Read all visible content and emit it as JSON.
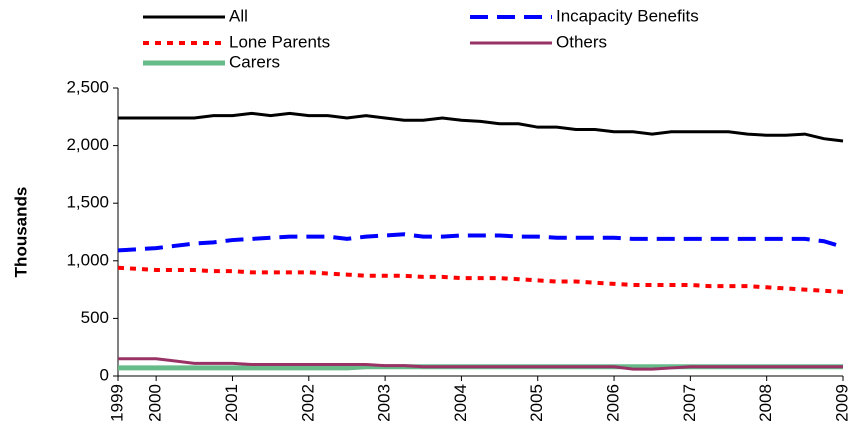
{
  "chart_data": {
    "type": "line",
    "y_label": "Thousands",
    "categories": [
      "1999",
      null,
      "2000",
      null,
      null,
      null,
      "2001",
      null,
      null,
      null,
      "2002",
      null,
      null,
      null,
      "2003",
      null,
      null,
      null,
      "2004",
      null,
      null,
      null,
      "2005",
      null,
      null,
      null,
      "2006",
      null,
      null,
      null,
      "2007",
      null,
      null,
      null,
      "2008",
      null,
      null,
      null,
      "2009"
    ],
    "series": [
      {
        "name": "All",
        "color": "#000000",
        "style": "solid",
        "values": [
          2240,
          2240,
          2240,
          2240,
          2240,
          2260,
          2260,
          2280,
          2260,
          2280,
          2260,
          2260,
          2240,
          2260,
          2240,
          2220,
          2220,
          2240,
          2220,
          2210,
          2190,
          2190,
          2160,
          2160,
          2140,
          2140,
          2120,
          2120,
          2100,
          2120,
          2120,
          2120,
          2120,
          2100,
          2090,
          2090,
          2100,
          2060,
          2040
        ]
      },
      {
        "name": "Incapacity Benefits",
        "color": "#0000ff",
        "style": "dashed",
        "values": [
          1090,
          1100,
          1110,
          1130,
          1150,
          1160,
          1180,
          1190,
          1200,
          1210,
          1210,
          1210,
          1190,
          1210,
          1220,
          1230,
          1210,
          1210,
          1220,
          1220,
          1220,
          1210,
          1210,
          1200,
          1200,
          1200,
          1200,
          1190,
          1190,
          1190,
          1190,
          1190,
          1190,
          1190,
          1190,
          1190,
          1190,
          1170,
          1120
        ]
      },
      {
        "name": "Lone Parents",
        "color": "#ff0000",
        "style": "dotted",
        "values": [
          940,
          930,
          920,
          920,
          920,
          910,
          910,
          900,
          900,
          900,
          900,
          890,
          880,
          870,
          870,
          870,
          860,
          860,
          850,
          850,
          850,
          840,
          830,
          820,
          820,
          810,
          800,
          790,
          790,
          790,
          790,
          780,
          780,
          780,
          770,
          760,
          750,
          740,
          730
        ]
      },
      {
        "name": "Others",
        "color": "#993366",
        "style": "solid",
        "values": [
          150,
          150,
          150,
          130,
          110,
          110,
          110,
          100,
          100,
          100,
          100,
          100,
          100,
          100,
          90,
          90,
          80,
          80,
          80,
          80,
          80,
          80,
          80,
          80,
          80,
          80,
          80,
          60,
          60,
          70,
          80,
          80,
          80,
          80,
          80,
          80,
          80,
          80,
          80
        ]
      },
      {
        "name": "Carers",
        "color": "#66bb88",
        "style": "thick",
        "values": [
          70,
          70,
          70,
          70,
          70,
          70,
          70,
          70,
          70,
          70,
          70,
          70,
          70,
          80,
          80,
          80,
          80,
          80,
          80,
          80,
          80,
          80,
          80,
          80,
          80,
          80,
          80,
          80,
          80,
          80,
          80,
          80,
          80,
          80,
          80,
          80,
          80,
          80,
          80
        ]
      }
    ],
    "ylim": [
      0,
      2500
    ],
    "yticks": [
      0,
      500,
      {
        "value": 1000,
        "label": "1,000"
      },
      {
        "value": 1500,
        "label": "1,500"
      },
      {
        "value": 2000,
        "label": "2,000"
      },
      {
        "value": 2500,
        "label": "2,500"
      }
    ],
    "grid": false
  }
}
